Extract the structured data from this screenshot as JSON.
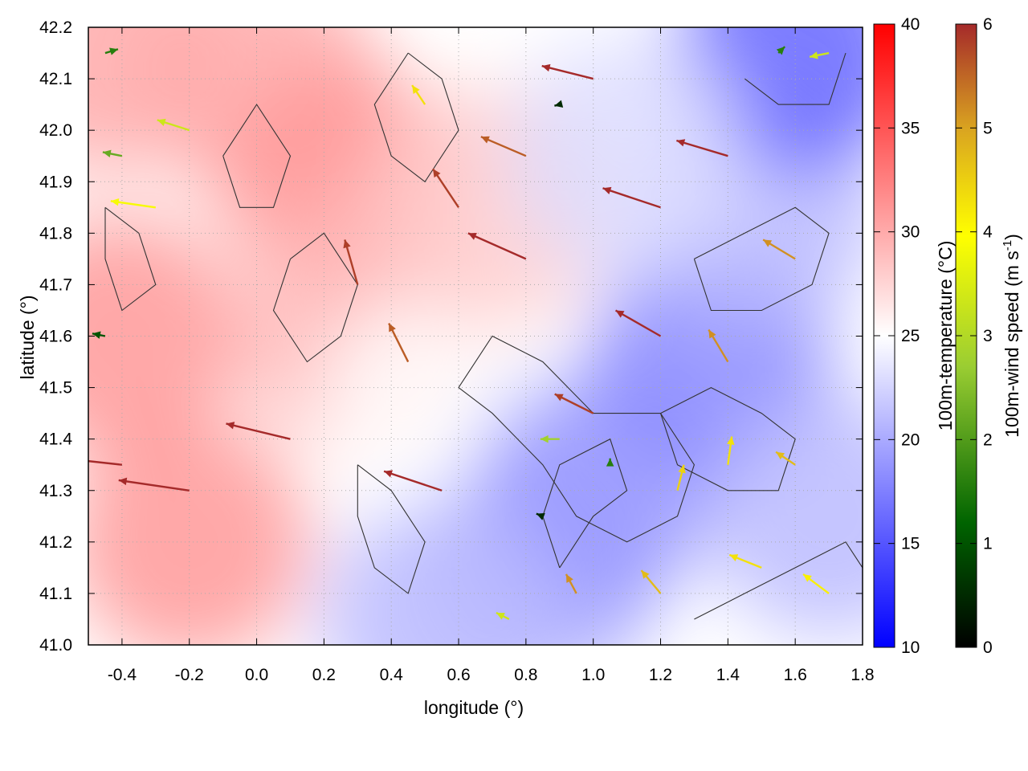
{
  "chart_data": {
    "type": "heatmap",
    "subtype": "vector-field-with-contours",
    "xlabel": "longitude (°)",
    "ylabel": "latitude (°)",
    "xlim": [
      -0.5,
      1.8
    ],
    "ylim": [
      41.0,
      42.2
    ],
    "x_ticks": [
      "-0.4",
      "-0.2",
      "0.0",
      "0.2",
      "0.4",
      "0.6",
      "0.8",
      "1.0",
      "1.2",
      "1.4",
      "1.6",
      "1.8"
    ],
    "x_tick_values": [
      -0.4,
      -0.2,
      0.0,
      0.2,
      0.4,
      0.6,
      0.8,
      1.0,
      1.2,
      1.4,
      1.6,
      1.8
    ],
    "y_ticks": [
      "41.0",
      "41.1",
      "41.2",
      "41.3",
      "41.4",
      "41.5",
      "41.6",
      "41.7",
      "41.8",
      "41.9",
      "42.0",
      "42.1",
      "42.2"
    ],
    "y_tick_values": [
      41.0,
      41.1,
      41.2,
      41.3,
      41.4,
      41.5,
      41.6,
      41.7,
      41.8,
      41.9,
      42.0,
      42.1,
      42.2
    ],
    "grid": true,
    "temperature_colorbar": {
      "label": "100m-temperature (°C)",
      "range": [
        10,
        40
      ],
      "ticks": [
        "10",
        "15",
        "20",
        "25",
        "30",
        "35",
        "40"
      ],
      "tick_values": [
        10,
        15,
        20,
        25,
        30,
        35,
        40
      ],
      "colors": [
        "#0000ff",
        "#ffffff",
        "#ff0000"
      ]
    },
    "wind_colorbar": {
      "label": "100m-wind speed (m s",
      "label_sup": "-1",
      "label_end": ")",
      "range": [
        0,
        6
      ],
      "ticks": [
        "0",
        "1",
        "2",
        "3",
        "4",
        "5",
        "6"
      ],
      "tick_values": [
        0,
        1,
        2,
        3,
        4,
        5,
        6
      ],
      "colors": [
        "#000000",
        "#006400",
        "#9acd32",
        "#ffff00",
        "#daa520",
        "#a52a2a"
      ]
    },
    "temperature_field": [
      {
        "lon": -0.45,
        "lat": 42.15,
        "t": 30
      },
      {
        "lon": 0.0,
        "lat": 42.1,
        "t": 30
      },
      {
        "lon": 0.25,
        "lat": 41.9,
        "t": 31
      },
      {
        "lon": -0.4,
        "lat": 41.6,
        "t": 31
      },
      {
        "lon": -0.2,
        "lat": 41.2,
        "t": 31
      },
      {
        "lon": 0.3,
        "lat": 41.6,
        "t": 29
      },
      {
        "lon": 0.55,
        "lat": 41.45,
        "t": 25
      },
      {
        "lon": 0.7,
        "lat": 41.85,
        "t": 28
      },
      {
        "lon": 0.85,
        "lat": 41.15,
        "t": 20
      },
      {
        "lon": 1.0,
        "lat": 41.3,
        "t": 19
      },
      {
        "lon": 1.35,
        "lat": 41.55,
        "t": 18
      },
      {
        "lon": 1.5,
        "lat": 41.85,
        "t": 21
      },
      {
        "lon": 1.6,
        "lat": 42.15,
        "t": 16
      },
      {
        "lon": 1.7,
        "lat": 41.25,
        "t": 21
      },
      {
        "lon": 1.1,
        "lat": 41.95,
        "t": 23
      },
      {
        "lon": 0.55,
        "lat": 41.05,
        "t": 21
      }
    ],
    "wind_vectors": [
      {
        "lon": -0.45,
        "lat": 42.15,
        "u": 1.0,
        "v": 0.3,
        "speed": 1.5
      },
      {
        "lon": -0.4,
        "lat": 41.95,
        "u": -1.5,
        "v": 0.3,
        "speed": 2.0
      },
      {
        "lon": -0.45,
        "lat": 41.6,
        "u": -1.0,
        "v": 0.2,
        "speed": 1.0
      },
      {
        "lon": -0.3,
        "lat": 41.85,
        "u": -3.5,
        "v": 0.5,
        "speed": 3.5
      },
      {
        "lon": -0.2,
        "lat": 42.0,
        "u": -2.5,
        "v": 0.8,
        "speed": 3.0
      },
      {
        "lon": -0.4,
        "lat": 41.35,
        "u": -5.5,
        "v": 0.6,
        "speed": 6.0
      },
      {
        "lon": -0.2,
        "lat": 41.3,
        "u": -5.5,
        "v": 0.8,
        "speed": 6.0
      },
      {
        "lon": 0.1,
        "lat": 41.4,
        "u": -5.0,
        "v": 1.2,
        "speed": 6.0
      },
      {
        "lon": 0.3,
        "lat": 41.7,
        "u": -1.0,
        "v": 3.5,
        "speed": 5.8
      },
      {
        "lon": 0.45,
        "lat": 41.55,
        "u": -1.5,
        "v": 3.0,
        "speed": 5.5
      },
      {
        "lon": 0.55,
        "lat": 41.3,
        "u": -4.5,
        "v": 1.5,
        "speed": 6.0
      },
      {
        "lon": 0.6,
        "lat": 41.85,
        "u": -2.0,
        "v": 3.0,
        "speed": 5.8
      },
      {
        "lon": 0.8,
        "lat": 41.95,
        "u": -3.5,
        "v": 1.5,
        "speed": 5.5
      },
      {
        "lon": 0.8,
        "lat": 41.75,
        "u": -4.5,
        "v": 2.0,
        "speed": 6.0
      },
      {
        "lon": 0.5,
        "lat": 42.05,
        "u": -1.0,
        "v": 1.5,
        "speed": 4.0
      },
      {
        "lon": 1.0,
        "lat": 42.1,
        "u": -4.0,
        "v": 1.0,
        "speed": 6.0
      },
      {
        "lon": 1.2,
        "lat": 41.85,
        "u": -4.5,
        "v": 1.5,
        "speed": 6.0
      },
      {
        "lon": 1.4,
        "lat": 41.95,
        "u": -4.0,
        "v": 1.2,
        "speed": 6.0
      },
      {
        "lon": 1.6,
        "lat": 41.75,
        "u": -2.5,
        "v": 1.5,
        "speed": 5.0
      },
      {
        "lon": 1.2,
        "lat": 41.6,
        "u": -3.5,
        "v": 2.0,
        "speed": 6.0
      },
      {
        "lon": 1.0,
        "lat": 41.45,
        "u": -3.0,
        "v": 1.5,
        "speed": 5.8
      },
      {
        "lon": 1.4,
        "lat": 41.55,
        "u": -1.5,
        "v": 2.5,
        "speed": 5.0
      },
      {
        "lon": 1.55,
        "lat": 42.15,
        "u": 0.5,
        "v": 0.5,
        "speed": 1.5
      },
      {
        "lon": 1.7,
        "lat": 42.15,
        "u": -1.5,
        "v": -0.3,
        "speed": 3.0
      },
      {
        "lon": 1.25,
        "lat": 41.3,
        "u": 0.5,
        "v": 2.0,
        "speed": 4.2
      },
      {
        "lon": 1.4,
        "lat": 41.35,
        "u": 0.3,
        "v": 2.2,
        "speed": 4.0
      },
      {
        "lon": 1.6,
        "lat": 41.35,
        "u": -1.5,
        "v": 1.0,
        "speed": 4.5
      },
      {
        "lon": 1.5,
        "lat": 41.15,
        "u": -2.5,
        "v": 1.0,
        "speed": 4.0
      },
      {
        "lon": 1.7,
        "lat": 41.1,
        "u": -2.0,
        "v": 1.5,
        "speed": 3.8
      },
      {
        "lon": 1.2,
        "lat": 41.1,
        "u": -1.5,
        "v": 1.8,
        "speed": 4.5
      },
      {
        "lon": 0.95,
        "lat": 41.1,
        "u": -0.8,
        "v": 1.5,
        "speed": 5.0
      },
      {
        "lon": 0.75,
        "lat": 41.05,
        "u": -1.0,
        "v": 0.5,
        "speed": 3.0
      },
      {
        "lon": 0.9,
        "lat": 41.4,
        "u": -1.5,
        "v": 0.0,
        "speed": 2.5
      },
      {
        "lon": 0.85,
        "lat": 41.25,
        "u": -0.5,
        "v": 0.2,
        "speed": 0.5
      },
      {
        "lon": 1.05,
        "lat": 41.35,
        "u": 0.0,
        "v": 0.5,
        "speed": 1.5
      },
      {
        "lon": 0.9,
        "lat": 42.05,
        "u": -0.4,
        "v": -0.1,
        "speed": 0.5
      }
    ],
    "contours": [
      [
        [
          0.45,
          42.15
        ],
        [
          0.55,
          42.1
        ],
        [
          0.6,
          42.0
        ],
        [
          0.5,
          41.9
        ],
        [
          0.4,
          41.95
        ],
        [
          0.35,
          42.05
        ],
        [
          0.45,
          42.15
        ]
      ],
      [
        [
          0.6,
          41.5
        ],
        [
          0.7,
          41.45
        ],
        [
          0.85,
          41.35
        ],
        [
          0.95,
          41.25
        ],
        [
          1.1,
          41.2
        ],
        [
          1.25,
          41.25
        ],
        [
          1.3,
          41.35
        ],
        [
          1.2,
          41.45
        ],
        [
          1.0,
          41.45
        ],
        [
          0.85,
          41.55
        ],
        [
          0.7,
          41.6
        ],
        [
          0.6,
          41.5
        ]
      ],
      [
        [
          0.9,
          41.15
        ],
        [
          1.0,
          41.25
        ],
        [
          1.1,
          41.3
        ],
        [
          1.05,
          41.4
        ],
        [
          0.9,
          41.35
        ],
        [
          0.85,
          41.25
        ],
        [
          0.9,
          41.15
        ]
      ],
      [
        [
          1.2,
          41.45
        ],
        [
          1.35,
          41.5
        ],
        [
          1.5,
          41.45
        ],
        [
          1.6,
          41.4
        ],
        [
          1.55,
          41.3
        ],
        [
          1.4,
          41.3
        ],
        [
          1.25,
          41.35
        ],
        [
          1.2,
          41.45
        ]
      ],
      [
        [
          1.3,
          41.05
        ],
        [
          1.45,
          41.1
        ],
        [
          1.6,
          41.15
        ],
        [
          1.75,
          41.2
        ],
        [
          1.8,
          41.15
        ]
      ],
      [
        [
          1.3,
          41.75
        ],
        [
          1.45,
          41.8
        ],
        [
          1.6,
          41.85
        ],
        [
          1.7,
          41.8
        ],
        [
          1.65,
          41.7
        ],
        [
          1.5,
          41.65
        ],
        [
          1.35,
          41.65
        ],
        [
          1.3,
          41.75
        ]
      ],
      [
        [
          0.1,
          41.75
        ],
        [
          0.2,
          41.8
        ],
        [
          0.3,
          41.7
        ],
        [
          0.25,
          41.6
        ],
        [
          0.15,
          41.55
        ],
        [
          0.05,
          41.65
        ],
        [
          0.1,
          41.75
        ]
      ],
      [
        [
          -0.1,
          41.95
        ],
        [
          0.0,
          42.05
        ],
        [
          0.1,
          41.95
        ],
        [
          0.05,
          41.85
        ],
        [
          -0.05,
          41.85
        ],
        [
          -0.1,
          41.95
        ]
      ],
      [
        [
          0.3,
          41.35
        ],
        [
          0.4,
          41.3
        ],
        [
          0.5,
          41.2
        ],
        [
          0.45,
          41.1
        ],
        [
          0.35,
          41.15
        ],
        [
          0.3,
          41.25
        ],
        [
          0.3,
          41.35
        ]
      ],
      [
        [
          -0.45,
          41.85
        ],
        [
          -0.35,
          41.8
        ],
        [
          -0.3,
          41.7
        ],
        [
          -0.4,
          41.65
        ],
        [
          -0.45,
          41.75
        ],
        [
          -0.45,
          41.85
        ]
      ],
      [
        [
          1.45,
          42.1
        ],
        [
          1.55,
          42.05
        ],
        [
          1.7,
          42.05
        ],
        [
          1.75,
          42.15
        ]
      ]
    ]
  }
}
